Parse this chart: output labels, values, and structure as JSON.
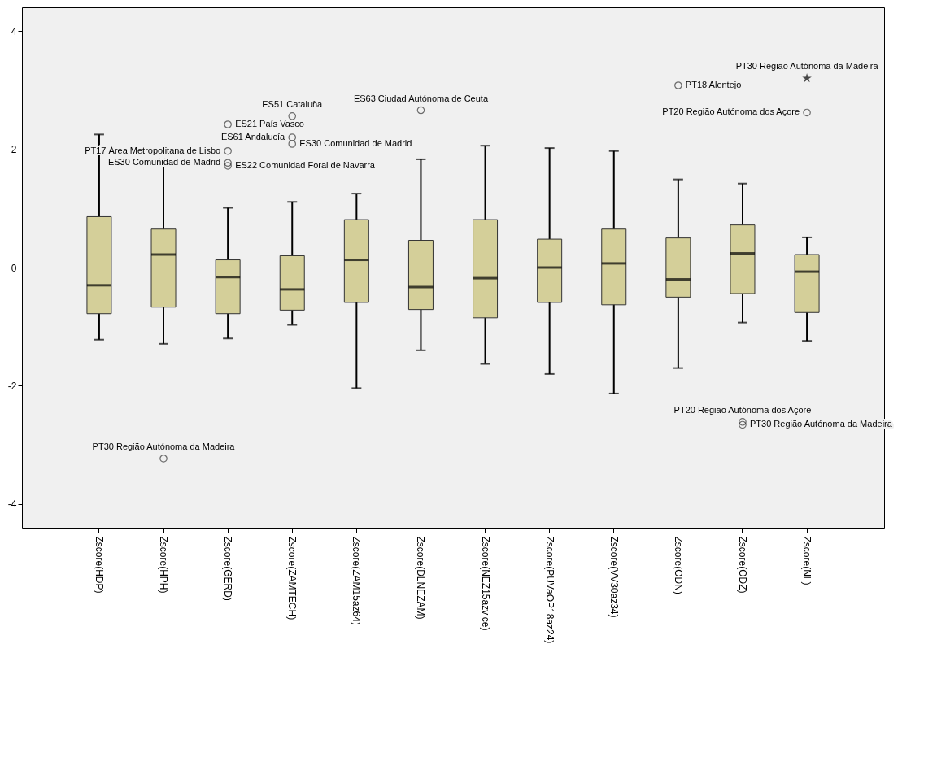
{
  "chart_data": {
    "type": "box",
    "categories": [
      "Zscore(HDP)",
      "Zscore(HPH)",
      "Zscore(GERD)",
      "Zscore(ZAMTECH)",
      "Zscore(ZAM15az64)",
      "Zscore(DLNEZAM)",
      "Zscore(NEZ15azvice)",
      "Zscore(PUVaOP18az24)",
      "Zscore(VV30az34)",
      "Zscore(ODN)",
      "Zscore(ODZ)",
      "Zscore(NL)"
    ],
    "ylim": [
      -4.4,
      4.4
    ],
    "yticks": [
      -4,
      -2,
      0,
      2,
      4
    ],
    "series": [
      {
        "type": "box",
        "color": "#d4cf99",
        "boxes": [
          {
            "low": -1.22,
            "q1": -0.78,
            "median": -0.3,
            "q3": 0.86,
            "high": 2.25
          },
          {
            "low": -1.29,
            "q1": -0.67,
            "median": 0.22,
            "q3": 0.65,
            "high": 1.83
          },
          {
            "low": -1.2,
            "q1": -0.78,
            "median": -0.16,
            "q3": 0.13,
            "high": 1.01
          },
          {
            "low": -0.97,
            "q1": -0.72,
            "median": -0.37,
            "q3": 0.2,
            "high": 1.11
          },
          {
            "low": -2.04,
            "q1": -0.59,
            "median": 0.13,
            "q3": 0.81,
            "high": 1.25
          },
          {
            "low": -1.4,
            "q1": -0.71,
            "median": -0.33,
            "q3": 0.46,
            "high": 1.83
          },
          {
            "low": -1.63,
            "q1": -0.85,
            "median": -0.18,
            "q3": 0.81,
            "high": 2.06
          },
          {
            "low": -1.8,
            "q1": -0.59,
            "median": 0.0,
            "q3": 0.48,
            "high": 2.02
          },
          {
            "low": -2.13,
            "q1": -0.63,
            "median": 0.07,
            "q3": 0.65,
            "high": 1.97
          },
          {
            "low": -1.7,
            "q1": -0.5,
            "median": -0.2,
            "q3": 0.5,
            "high": 1.49
          },
          {
            "low": -0.93,
            "q1": -0.44,
            "median": 0.24,
            "q3": 0.72,
            "high": 1.42
          },
          {
            "low": -1.24,
            "q1": -0.76,
            "median": -0.07,
            "q3": 0.22,
            "high": 0.51
          }
        ]
      },
      {
        "type": "scatter",
        "color": "#333333",
        "marker": "circle",
        "x": [
          "Zscore(HPH)",
          "Zscore(GERD)",
          "Zscore(GERD)",
          "Zscore(GERD)",
          "Zscore(GERD)",
          "Zscore(ZAMTECH)",
          "Zscore(ZAMTECH)",
          "Zscore(ZAMTECH)",
          "Zscore(DLNEZAM)",
          "Zscore(ODN)",
          "Zscore(ODZ)",
          "Zscore(ODZ)",
          "Zscore(NL)"
        ],
        "values": [
          -3.23,
          2.42,
          1.97,
          1.77,
          1.72,
          2.56,
          2.2,
          2.09,
          2.66,
          3.08,
          -2.61,
          -2.66,
          2.62
        ]
      },
      {
        "type": "scatter",
        "color": "#000000",
        "marker": "star",
        "x": [
          "Zscore(NL)"
        ],
        "values": [
          3.2
        ]
      }
    ],
    "annotations": [
      {
        "text": "PT30 Região Autónoma da Madeira",
        "x": "Zscore(HPH)",
        "y": -3.23
      },
      {
        "text": "ES21 País Vasco",
        "x": "Zscore(GERD)",
        "y": 2.42
      },
      {
        "text": "ES30 Comunidad de Madrid",
        "x": "Zscore(GERD)",
        "y": 1.77
      },
      {
        "text": "ES51 Cataluña",
        "x": "Zscore(ZAMTECH)",
        "y": 2.56
      },
      {
        "text": "ES22 Comunidad Foral de Navarra",
        "x": "Zscore(GERD)",
        "y": 1.72
      },
      {
        "text": "PT17 Área Metropolitana de Lisbo",
        "x": "Zscore(GERD)",
        "y": 1.97
      },
      {
        "text": "ES63 Ciudad Autónoma de Ceuta",
        "x": "Zscore(DLNEZAM)",
        "y": 2.66
      },
      {
        "text": "ES30 Comunidad de Madrid",
        "x": "Zscore(ZAMTECH)",
        "y": 2.09
      },
      {
        "text": "ES61 Andalucía",
        "x": "Zscore(ZAMTECH)",
        "y": 2.2
      },
      {
        "text": "PT30 Região Autónoma da Madeira",
        "x": "Zscore(NL)",
        "y": 3.2
      },
      {
        "text": "PT18 Alentejo",
        "x": "Zscore(ODN)",
        "y": 3.08
      },
      {
        "text": "PT20 Região Autónoma dos Açore",
        "x": "Zscore(NL)",
        "y": 2.62
      },
      {
        "text": "PT20 Região Autónoma dos Açore",
        "x": "Zscore(ODZ)",
        "y": -2.61
      },
      {
        "text": "PT30 Região Autónoma da Madeira",
        "x": "Zscore(ODZ)",
        "y": -2.66
      }
    ]
  }
}
